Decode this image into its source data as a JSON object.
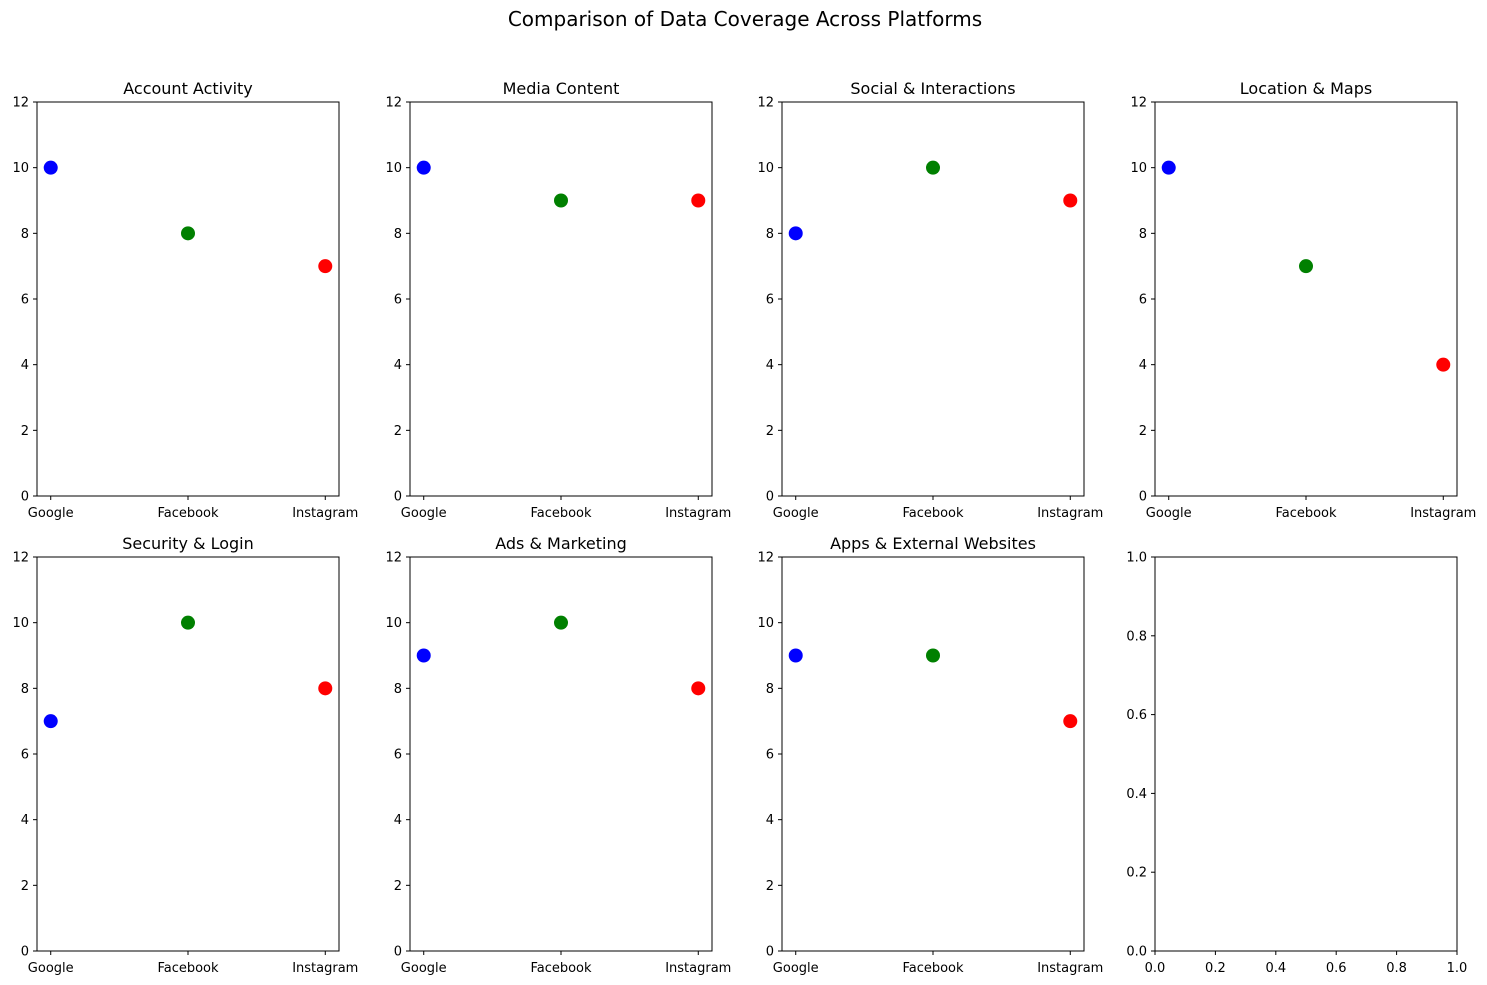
{
  "figure": {
    "title": "Comparison of Data Coverage Across Platforms"
  },
  "colors": {
    "Google": "#0000ff",
    "Facebook": "#008000",
    "Instagram": "#ff0000"
  },
  "chart_data": [
    {
      "type": "scatter",
      "title": "Account Activity",
      "categories": [
        "Google",
        "Facebook",
        "Instagram"
      ],
      "values": [
        10,
        8,
        7
      ],
      "ylim": [
        0,
        12
      ],
      "yticks": [
        "0",
        "2",
        "4",
        "6",
        "8",
        "10",
        "12"
      ]
    },
    {
      "type": "scatter",
      "title": "Media Content",
      "categories": [
        "Google",
        "Facebook",
        "Instagram"
      ],
      "values": [
        10,
        9,
        9
      ],
      "ylim": [
        0,
        12
      ],
      "yticks": [
        "0",
        "2",
        "4",
        "6",
        "8",
        "10",
        "12"
      ]
    },
    {
      "type": "scatter",
      "title": "Social & Interactions",
      "categories": [
        "Google",
        "Facebook",
        "Instagram"
      ],
      "values": [
        8,
        10,
        9
      ],
      "ylim": [
        0,
        12
      ],
      "yticks": [
        "0",
        "2",
        "4",
        "6",
        "8",
        "10",
        "12"
      ]
    },
    {
      "type": "scatter",
      "title": "Location & Maps",
      "categories": [
        "Google",
        "Facebook",
        "Instagram"
      ],
      "values": [
        10,
        7,
        4
      ],
      "ylim": [
        0,
        12
      ],
      "yticks": [
        "0",
        "2",
        "4",
        "6",
        "8",
        "10",
        "12"
      ]
    },
    {
      "type": "scatter",
      "title": "Security & Login",
      "categories": [
        "Google",
        "Facebook",
        "Instagram"
      ],
      "values": [
        7,
        10,
        8
      ],
      "ylim": [
        0,
        12
      ],
      "yticks": [
        "0",
        "2",
        "4",
        "6",
        "8",
        "10",
        "12"
      ]
    },
    {
      "type": "scatter",
      "title": "Ads & Marketing",
      "categories": [
        "Google",
        "Facebook",
        "Instagram"
      ],
      "values": [
        9,
        10,
        8
      ],
      "ylim": [
        0,
        12
      ],
      "yticks": [
        "0",
        "2",
        "4",
        "6",
        "8",
        "10",
        "12"
      ]
    },
    {
      "type": "scatter",
      "title": "Apps & External Websites",
      "categories": [
        "Google",
        "Facebook",
        "Instagram"
      ],
      "values": [
        9,
        9,
        7
      ],
      "ylim": [
        0,
        12
      ],
      "yticks": [
        "0",
        "2",
        "4",
        "6",
        "8",
        "10",
        "12"
      ]
    },
    {
      "type": "scatter",
      "title": "",
      "categories": [],
      "values": [],
      "xlim": [
        0,
        1
      ],
      "ylim": [
        0,
        1
      ],
      "xticks": [
        "0.0",
        "0.2",
        "0.4",
        "0.6",
        "0.8",
        "1.0"
      ],
      "yticks": [
        "0.0",
        "0.2",
        "0.4",
        "0.6",
        "0.8",
        "1.0"
      ]
    }
  ]
}
